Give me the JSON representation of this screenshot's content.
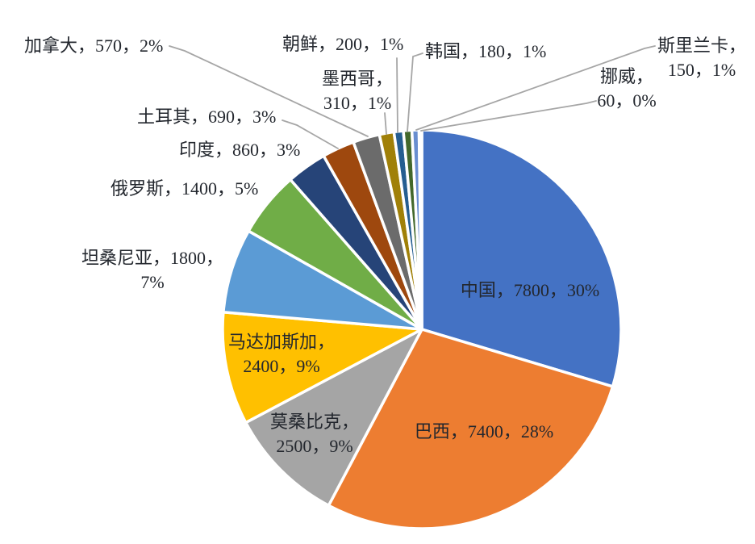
{
  "background": "#ffffff",
  "label_text_color": "#23272e",
  "leader_line_color": "#a6a6a6",
  "slice_border_color": "#ffffff",
  "chart_data": {
    "type": "pie",
    "title": "",
    "legend": "none",
    "grid": "off",
    "start_angle_deg": 0,
    "direction": "clockwise",
    "data_label_format": "name，value，percent",
    "slices": [
      {
        "id": "china",
        "name": "中国",
        "value": 7800,
        "percent": "30%",
        "color": "#4472C4",
        "label_lines": [
          "中国，7800，30%"
        ]
      },
      {
        "id": "brazil",
        "name": "巴西",
        "value": 7400,
        "percent": "28%",
        "color": "#ED7D31",
        "label_lines": [
          "巴西，7400，28%"
        ]
      },
      {
        "id": "mozambique",
        "name": "莫桑比克",
        "value": 2500,
        "percent": "9%",
        "color": "#A5A5A5",
        "label_lines": [
          "莫桑比克，",
          "2500，9%"
        ]
      },
      {
        "id": "madagascar",
        "name": "马达加斯加",
        "value": 2400,
        "percent": "9%",
        "color": "#FFC000",
        "label_lines": [
          "马达加斯加，",
          "2400，9%"
        ]
      },
      {
        "id": "tanzania",
        "name": "坦桑尼亚",
        "value": 1800,
        "percent": "7%",
        "color": "#5B9BD5",
        "label_lines": [
          "坦桑尼亚，1800，",
          "7%"
        ]
      },
      {
        "id": "russia",
        "name": "俄罗斯",
        "value": 1400,
        "percent": "5%",
        "color": "#70AD47",
        "label_lines": [
          "俄罗斯，1400，5%"
        ]
      },
      {
        "id": "india",
        "name": "印度",
        "value": 860,
        "percent": "3%",
        "color": "#264478",
        "label_lines": [
          "印度，860，3%"
        ]
      },
      {
        "id": "turkey",
        "name": "土耳其",
        "value": 690,
        "percent": "3%",
        "color": "#9E480E",
        "label_lines": [
          "土耳其，690，3%"
        ]
      },
      {
        "id": "canada",
        "name": "加拿大",
        "value": 570,
        "percent": "2%",
        "color": "#6B6B6B",
        "label_lines": [
          "加拿大，570，2%"
        ]
      },
      {
        "id": "mexico",
        "name": "墨西哥",
        "value": 310,
        "percent": "1%",
        "color": "#A08008",
        "label_lines": [
          "墨西哥，",
          "310，1%"
        ]
      },
      {
        "id": "north-korea",
        "name": "朝鲜",
        "value": 200,
        "percent": "1%",
        "color": "#255E91",
        "label_lines": [
          "朝鲜，200，1%"
        ]
      },
      {
        "id": "south-korea",
        "name": "韩国",
        "value": 180,
        "percent": "1%",
        "color": "#43682B",
        "label_lines": [
          "韩国，180，1%"
        ]
      },
      {
        "id": "sri-lanka",
        "name": "斯里兰卡",
        "value": 150,
        "percent": "1%",
        "color": "#698ED0",
        "label_lines": [
          "斯里兰卡，",
          "150，1%"
        ]
      },
      {
        "id": "norway",
        "name": "挪威",
        "value": 60,
        "percent": "0%",
        "color": "#F1975A",
        "label_lines": [
          "挪威，",
          "60，0%"
        ]
      }
    ]
  }
}
